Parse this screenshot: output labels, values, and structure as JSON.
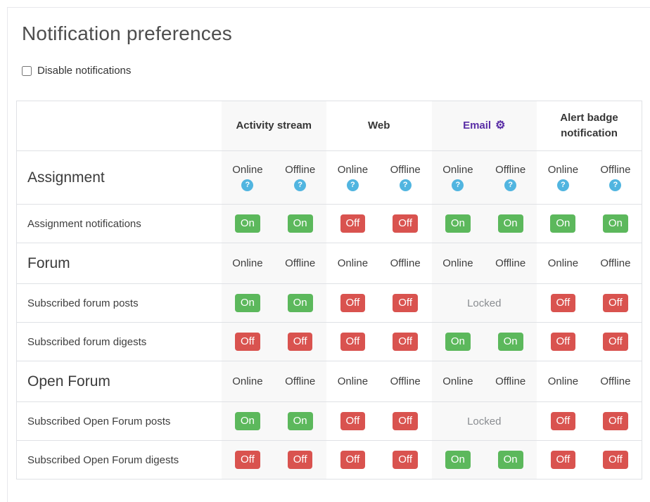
{
  "page": {
    "title": "Notification preferences",
    "disable_label": "Disable notifications",
    "disable_checked": false
  },
  "table": {
    "channels": [
      {
        "label": "Activity stream",
        "is_link": false
      },
      {
        "label": "Web",
        "is_link": false
      },
      {
        "label": "Email",
        "is_link": true
      },
      {
        "label": "Alert badge notification",
        "is_link": false
      }
    ],
    "subheaders": [
      "Online",
      "Offline"
    ],
    "icons": {
      "gear": "⚙",
      "help": "?"
    },
    "sections": [
      {
        "name": "Assignment",
        "show_help": true,
        "rows": [
          {
            "label": "Assignment notifications",
            "cells": [
              {
                "v": "On"
              },
              {
                "v": "On"
              },
              {
                "v": "Off"
              },
              {
                "v": "Off"
              },
              {
                "v": "On"
              },
              {
                "v": "On"
              },
              {
                "v": "On"
              },
              {
                "v": "On"
              }
            ]
          }
        ]
      },
      {
        "name": "Forum",
        "show_help": false,
        "rows": [
          {
            "label": "Subscribed forum posts",
            "cells": [
              {
                "v": "On"
              },
              {
                "v": "On"
              },
              {
                "v": "Off"
              },
              {
                "v": "Off"
              },
              {
                "v": "Locked",
                "span": 2
              },
              {
                "v": "Off"
              },
              {
                "v": "Off"
              }
            ]
          },
          {
            "label": "Subscribed forum digests",
            "cells": [
              {
                "v": "Off"
              },
              {
                "v": "Off"
              },
              {
                "v": "Off"
              },
              {
                "v": "Off"
              },
              {
                "v": "On"
              },
              {
                "v": "On"
              },
              {
                "v": "Off"
              },
              {
                "v": "Off"
              }
            ]
          }
        ]
      },
      {
        "name": "Open Forum",
        "show_help": false,
        "rows": [
          {
            "label": "Subscribed Open Forum posts",
            "cells": [
              {
                "v": "On"
              },
              {
                "v": "On"
              },
              {
                "v": "Off"
              },
              {
                "v": "Off"
              },
              {
                "v": "Locked",
                "span": 2
              },
              {
                "v": "Off"
              },
              {
                "v": "Off"
              }
            ]
          },
          {
            "label": "Subscribed Open Forum digests",
            "cells": [
              {
                "v": "Off"
              },
              {
                "v": "Off"
              },
              {
                "v": "Off"
              },
              {
                "v": "Off"
              },
              {
                "v": "On"
              },
              {
                "v": "On"
              },
              {
                "v": "Off"
              },
              {
                "v": "Off"
              }
            ]
          }
        ]
      }
    ]
  },
  "colors": {
    "on": "#5cb85c",
    "off": "#d9534f",
    "help": "#51b5e0",
    "email_link": "#5a2ea6",
    "stripe": "#f8f8f8",
    "border": "#dfe1e5"
  }
}
